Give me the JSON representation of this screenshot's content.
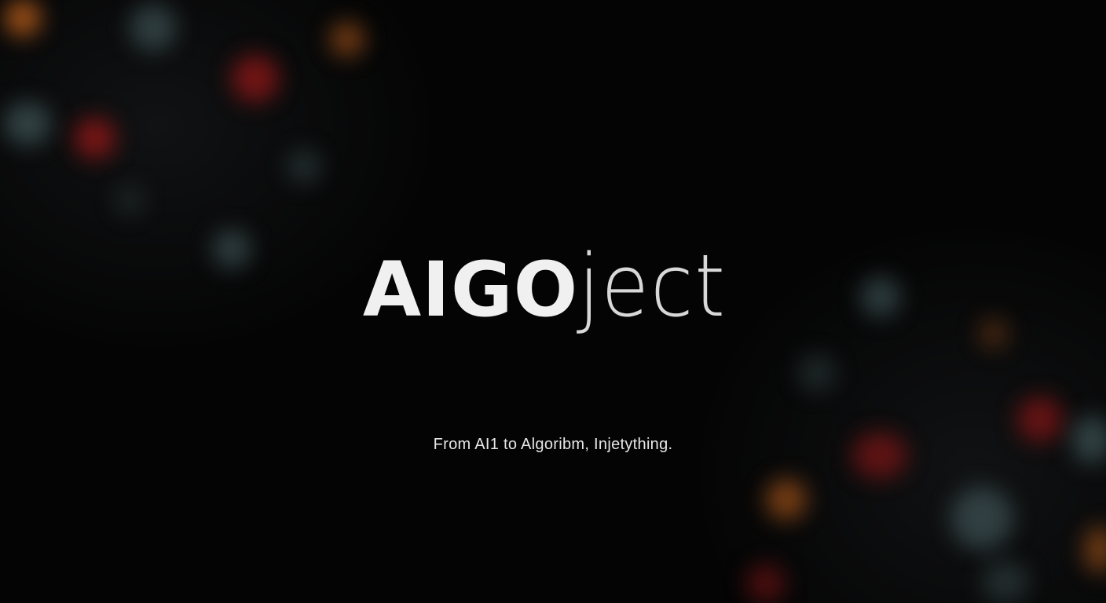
{
  "brand": {
    "bold_part": "AIGO",
    "light_part": "ject"
  },
  "tagline": "From AI1 to Algoribm, Injetything.",
  "colors": {
    "background": "#040404",
    "text": "#f0f0f0",
    "bokeh_red": "#a01818",
    "bokeh_orange": "#d2691e",
    "bokeh_teal": "#5a7a7e"
  }
}
